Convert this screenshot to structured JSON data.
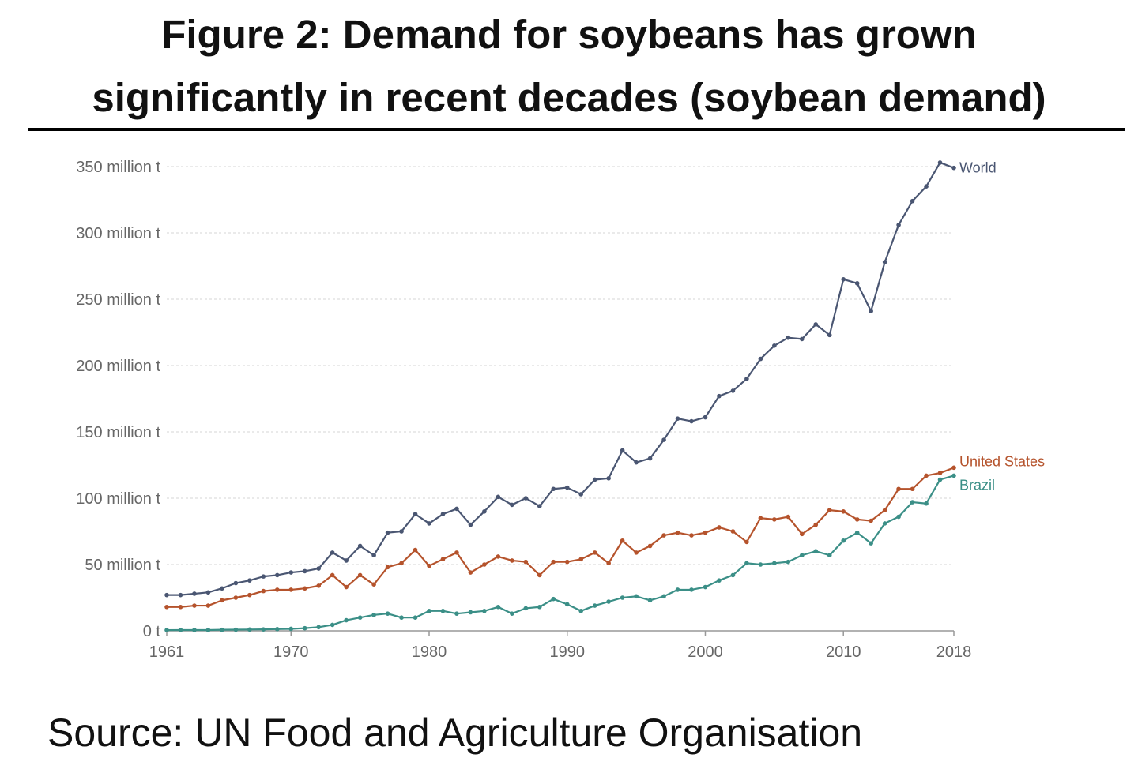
{
  "figure": {
    "title_line1": "Figure 2: Demand for soybeans has grown",
    "title_line2": "significantly in recent decades (soybean demand)",
    "source": "Source: UN Food and Agriculture Organisation"
  },
  "chart_data": {
    "type": "line",
    "title": "Figure 2: Demand for soybeans has grown significantly in recent decades (soybean demand)",
    "xlabel": "",
    "ylabel": "",
    "unit": "million t",
    "xlim": [
      1961,
      2018
    ],
    "ylim": [
      0,
      350
    ],
    "grid": true,
    "yticks": [
      0,
      50,
      100,
      150,
      200,
      250,
      300,
      350
    ],
    "ytick_labels": [
      "0 t",
      "50 million t",
      "100 million t",
      "150 million t",
      "200 million t",
      "250 million t",
      "300 million t",
      "350 million t"
    ],
    "xticks": [
      1961,
      1970,
      1980,
      1990,
      2000,
      2010,
      2018
    ],
    "xtick_labels": [
      "1961",
      "1970",
      "1980",
      "1990",
      "2000",
      "2010",
      "2018"
    ],
    "x": [
      1961,
      1962,
      1963,
      1964,
      1965,
      1966,
      1967,
      1968,
      1969,
      1970,
      1971,
      1972,
      1973,
      1974,
      1975,
      1976,
      1977,
      1978,
      1979,
      1980,
      1981,
      1982,
      1983,
      1984,
      1985,
      1986,
      1987,
      1988,
      1989,
      1990,
      1991,
      1992,
      1993,
      1994,
      1995,
      1996,
      1997,
      1998,
      1999,
      2000,
      2001,
      2002,
      2003,
      2004,
      2005,
      2006,
      2007,
      2008,
      2009,
      2010,
      2011,
      2012,
      2013,
      2014,
      2015,
      2016,
      2017,
      2018
    ],
    "series": [
      {
        "name": "World",
        "color": "#4a5672",
        "values": [
          27,
          27,
          28,
          29,
          32,
          36,
          38,
          41,
          42,
          44,
          45,
          47,
          59,
          53,
          64,
          57,
          74,
          75,
          88,
          81,
          88,
          92,
          80,
          90,
          101,
          95,
          100,
          94,
          107,
          108,
          103,
          114,
          115,
          136,
          127,
          130,
          144,
          160,
          158,
          161,
          177,
          181,
          190,
          205,
          215,
          221,
          220,
          231,
          223,
          265,
          262,
          241,
          278,
          306,
          324,
          335,
          353,
          349
        ]
      },
      {
        "name": "United States",
        "color": "#b5532c",
        "values": [
          18,
          18,
          19,
          19,
          23,
          25,
          27,
          30,
          31,
          31,
          32,
          34,
          42,
          33,
          42,
          35,
          48,
          51,
          61,
          49,
          54,
          59,
          44,
          50,
          56,
          53,
          52,
          42,
          52,
          52,
          54,
          59,
          51,
          68,
          59,
          64,
          72,
          74,
          72,
          74,
          78,
          75,
          67,
          85,
          84,
          86,
          73,
          80,
          91,
          90,
          84,
          83,
          91,
          107,
          107,
          117,
          119,
          123
        ]
      },
      {
        "name": "Brazil",
        "color": "#3b8f87",
        "values": [
          0.5,
          0.6,
          0.6,
          0.6,
          0.8,
          0.9,
          1.0,
          1.1,
          1.3,
          1.5,
          2.0,
          2.8,
          4.5,
          8,
          10,
          12,
          13,
          10,
          10,
          15,
          15,
          13,
          14,
          15,
          18,
          13,
          17,
          18,
          24,
          20,
          15,
          19,
          22,
          25,
          26,
          23,
          26,
          31,
          31,
          33,
          38,
          42,
          51,
          50,
          51,
          52,
          57,
          60,
          57,
          68,
          74,
          66,
          81,
          86,
          97,
          96,
          114,
          117
        ]
      }
    ]
  }
}
